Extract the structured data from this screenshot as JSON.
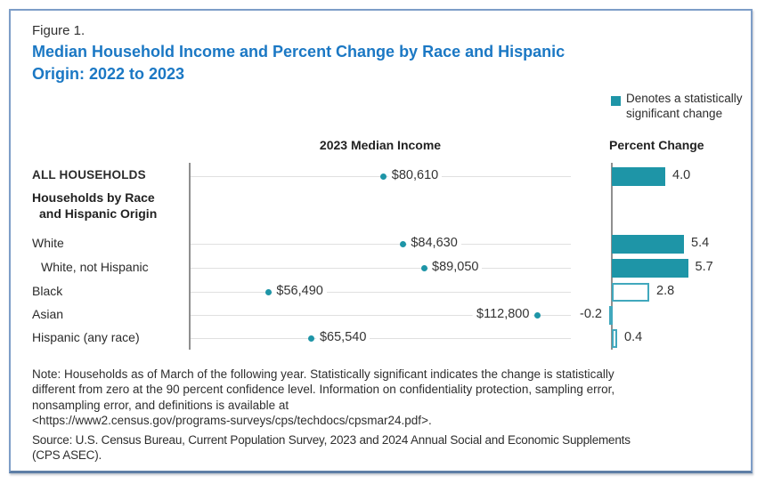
{
  "figure": {
    "label": "Figure 1.",
    "title_lines": [
      "Median Household Income and Percent Change by Race and Hispanic",
      "Origin: 2022 to 2023"
    ]
  },
  "legend": {
    "swatch_color": "#1E95A7",
    "lines": [
      "Denotes a statistically",
      "significant change"
    ]
  },
  "columns": {
    "income_header": "2023 Median Income",
    "pct_header": "Percent Change"
  },
  "section": {
    "lines": [
      "Households by Race",
      "and Hispanic Origin"
    ]
  },
  "rows": [
    {
      "label": "ALL HOUSEHOLDS",
      "caps": true,
      "indent": false,
      "income": 80610,
      "income_label": "$80,610",
      "income_label_side": "right",
      "pct": 4.0,
      "pct_label": "4.0",
      "significant": true
    },
    {
      "label": "White",
      "caps": false,
      "indent": false,
      "income": 84630,
      "income_label": "$84,630",
      "income_label_side": "right",
      "pct": 5.4,
      "pct_label": "5.4",
      "significant": true
    },
    {
      "label": "White, not Hispanic",
      "caps": false,
      "indent": true,
      "income": 89050,
      "income_label": "$89,050",
      "income_label_side": "right",
      "pct": 5.7,
      "pct_label": "5.7",
      "significant": true
    },
    {
      "label": "Black",
      "caps": false,
      "indent": false,
      "income": 56490,
      "income_label": "$56,490",
      "income_label_side": "right",
      "pct": 2.8,
      "pct_label": "2.8",
      "significant": false
    },
    {
      "label": "Asian",
      "caps": false,
      "indent": false,
      "income": 112800,
      "income_label": "$112,800",
      "income_label_side": "left",
      "pct": -0.2,
      "pct_label": "-0.2",
      "significant": false
    },
    {
      "label": "Hispanic (any race)",
      "caps": false,
      "indent": false,
      "income": 65540,
      "income_label": "$65,540",
      "income_label_side": "right",
      "pct": 0.4,
      "pct_label": "0.4",
      "significant": false
    }
  ],
  "chart_data": {
    "type": "bar",
    "title": "Median Household Income and Percent Change by Race and Hispanic Origin: 2022 to 2023",
    "categories": [
      "ALL HOUSEHOLDS",
      "White",
      "White, not Hispanic",
      "Black",
      "Asian",
      "Hispanic (any race)"
    ],
    "series": [
      {
        "name": "2023 Median Income",
        "values": [
          80610,
          84630,
          89050,
          56490,
          112800,
          65540
        ]
      },
      {
        "name": "Percent Change",
        "values": [
          4.0,
          5.4,
          5.7,
          2.8,
          -0.2,
          0.4
        ]
      }
    ],
    "statistically_significant": [
      true,
      true,
      true,
      false,
      false,
      false
    ],
    "legend": "Denotes a statistically significant change",
    "layout": {
      "income_axis_min": 40000,
      "income_axis_max": 120000,
      "grid": "horizontal-row-lines",
      "legend_position": "top-right"
    },
    "colors": {
      "significant_fill": "#1E95A7",
      "not_significant": "white with teal outline",
      "title": "#1B78C4"
    }
  },
  "notes": {
    "note_lines": [
      "Note: Households as of March of the following year. Statistically significant indicates the change is statistically",
      "different from zero at the 90 percent confidence level. Information on confidentiality protection, sampling error,",
      "nonsampling error, and definitions is available at",
      "<https://www2.census.gov/programs-surveys/cps/techdocs/cpsmar24.pdf>."
    ],
    "source_lines": [
      "Source: U.S. Census Bureau, Current Population Survey, 2023 and 2024 Annual Social and Economic Supplements",
      "(CPS ASEC)."
    ]
  }
}
